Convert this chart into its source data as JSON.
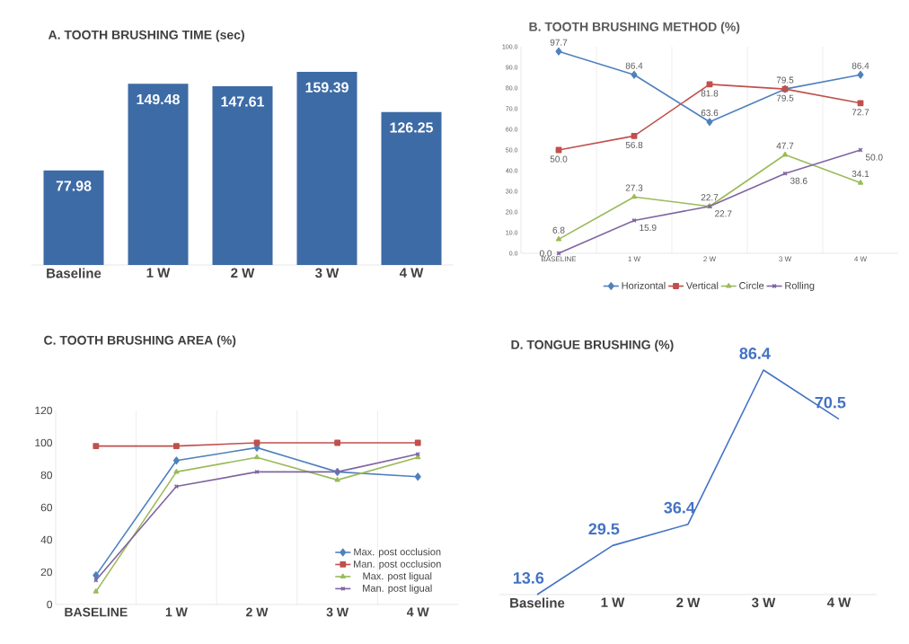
{
  "chart_data": [
    {
      "type": "bar",
      "title": "A. TOOTH BRUSHING TIME (sec)",
      "categories": [
        "Baseline",
        "1 W",
        "2 W",
        "3 W",
        "4 W"
      ],
      "values": [
        77.98,
        149.48,
        147.61,
        159.39,
        126.25
      ],
      "color": "#3d6ba6",
      "data_labels": true
    },
    {
      "type": "line",
      "title": "B. TOOTH BRUSHING METHOD (%)",
      "categories": [
        "BASELINE",
        "1 W",
        "2 W",
        "3 W",
        "4 W"
      ],
      "series": [
        {
          "name": "Horizontal",
          "color": "#4f81bd",
          "marker": "diamond",
          "values": [
            97.7,
            86.4,
            63.6,
            79.5,
            86.4
          ],
          "value_labels": [
            "97.7",
            "86.4",
            "63.6",
            "79.5",
            "86.4"
          ]
        },
        {
          "name": "Vertical",
          "color": "#c0504d",
          "marker": "square",
          "values": [
            50.0,
            56.8,
            81.8,
            79.5,
            72.7
          ],
          "value_labels": [
            "50.0",
            "56.8",
            "81.8",
            "79.5",
            "72.7"
          ]
        },
        {
          "name": "Circle",
          "color": "#9bbb59",
          "marker": "triangle",
          "values": [
            6.8,
            27.3,
            22.7,
            47.7,
            34.1
          ],
          "value_labels": [
            "6.8",
            "27.3",
            "22.7",
            "47.7",
            "34.1"
          ]
        },
        {
          "name": "Rolling",
          "color": "#8064a2",
          "marker": "cross",
          "values": [
            0.0,
            15.9,
            22.7,
            38.6,
            50.0
          ],
          "value_labels": [
            "0.0",
            "15.9",
            "22.7",
            "38.6",
            "50.0"
          ]
        }
      ],
      "ylim": [
        0,
        100
      ],
      "yticks": [
        {
          "value": 0,
          "label": "0.0"
        },
        {
          "value": 10,
          "label": "10.0"
        },
        {
          "value": 20,
          "label": "20.0"
        },
        {
          "value": 30,
          "label": "30.0"
        },
        {
          "value": 40,
          "label": "40.0"
        },
        {
          "value": 50,
          "label": "50.0"
        },
        {
          "value": 60,
          "label": "60.0"
        },
        {
          "value": 70,
          "label": "70.0"
        },
        {
          "value": 80,
          "label": "80.0"
        },
        {
          "value": 90,
          "label": "90.0"
        },
        {
          "value": 100,
          "label": "100.0"
        }
      ],
      "grid": "x",
      "legend": "bottom"
    },
    {
      "type": "line",
      "title": "C. TOOTH BRUSHING AREA (%)",
      "categories": [
        "BASELINE",
        "1 W",
        "2 W",
        "3 W",
        "4 W"
      ],
      "series": [
        {
          "name": "Max. post occlusion",
          "color": "#4f81bd",
          "marker": "diamond",
          "values": [
            18,
            89,
            97,
            82,
            79
          ]
        },
        {
          "name": "Man. post occlusion",
          "color": "#c0504d",
          "marker": "square",
          "values": [
            98,
            98,
            100,
            100,
            100
          ]
        },
        {
          "name": "Max. post ligual",
          "color": "#9bbb59",
          "marker": "triangle",
          "values": [
            8,
            82,
            91,
            77,
            91
          ]
        },
        {
          "name": "Man. post ligual",
          "color": "#8064a2",
          "marker": "cross",
          "values": [
            15,
            73,
            82,
            82,
            93
          ]
        }
      ],
      "ylim": [
        0,
        120
      ],
      "yticks": [
        0,
        20,
        40,
        60,
        80,
        100,
        120
      ],
      "grid": "x",
      "legend": "bottom right"
    },
    {
      "type": "line",
      "title": "D. TONGUE BRUSHING (%)",
      "categories": [
        "Baseline",
        "1 W",
        "2 W",
        "3 W",
        "4 W"
      ],
      "values": [
        13.6,
        29.5,
        36.4,
        86.4,
        70.5
      ],
      "color": "#4472c4",
      "marker": "none",
      "data_labels": true
    }
  ]
}
